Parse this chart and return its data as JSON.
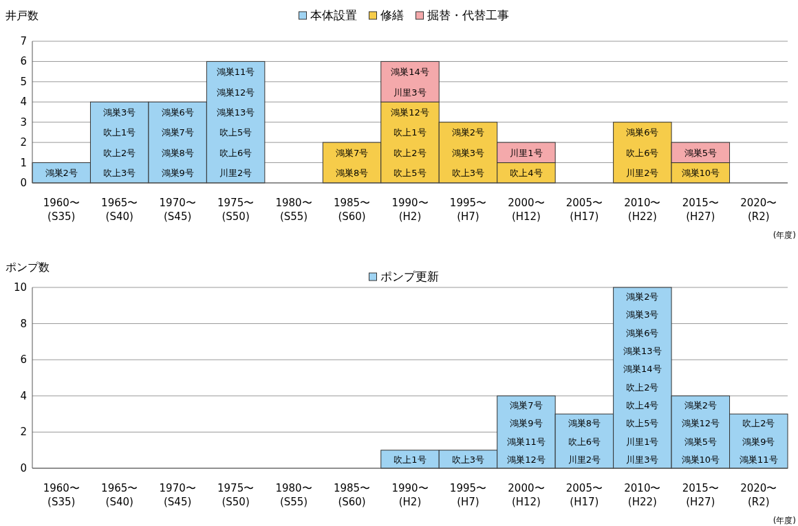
{
  "chart_data": [
    {
      "type": "bar",
      "stacked": true,
      "ylabel": "井戸数",
      "xlabel": "(年度)",
      "legend": "top",
      "grid": "y",
      "categories": [
        "1960〜\n(S35)",
        "1965〜\n(S40)",
        "1970〜\n(S45)",
        "1975〜\n(S50)",
        "1980〜\n(S55)",
        "1985〜\n(S60)",
        "1990〜\n(H2)",
        "1995〜\n(H7)",
        "2000〜\n(H12)",
        "2005〜\n(H17)",
        "2010〜\n(H22)",
        "2015〜\n(H27)",
        "2020〜\n(R2)"
      ],
      "ylim": [
        0,
        7
      ],
      "yticks": [
        0,
        1,
        2,
        3,
        4,
        5,
        6,
        7
      ],
      "series": [
        {
          "name": "本体設置",
          "color": "#9fd3f2",
          "values": [
            1,
            4,
            4,
            6,
            null,
            null,
            null,
            null,
            null,
            null,
            null,
            null,
            null
          ],
          "value_labels": [
            "鴻巣2号",
            "鴻巣3号吹上1号吹上2号吹上3号",
            "鴻巣6号鴻巣7号鴻巣8号鴻巣9号",
            "鴻巣11号鴻巣12号鴻巣13号吹上5号吹上6号川里2号",
            null,
            null,
            null,
            null,
            null,
            null,
            null,
            null,
            null
          ]
        },
        {
          "name": "修繕",
          "color": "#f6cc4a",
          "values": [
            null,
            null,
            null,
            null,
            null,
            2,
            4,
            3,
            1,
            null,
            3,
            1,
            null
          ],
          "value_labels": [
            null,
            null,
            null,
            null,
            null,
            "鴻巣7号鴻巣8号",
            "鴻巣12号吹上1号吹上2号吹上5号",
            "鴻巣2号鴻巣3号吹上3号",
            "吹上4号",
            null,
            "鴻巣6号吹上6号川里2号",
            "鴻巣10号",
            null
          ]
        },
        {
          "name": "掘替・代替工事",
          "color": "#f4a9ab",
          "values": [
            null,
            null,
            null,
            null,
            null,
            null,
            2,
            null,
            1,
            null,
            null,
            1,
            null
          ],
          "value_labels": [
            null,
            null,
            null,
            null,
            null,
            null,
            "鴻巣14号川里3号",
            null,
            "川里1号",
            null,
            null,
            "鴻巣5号",
            null
          ]
        }
      ]
    },
    {
      "type": "bar",
      "ylabel": "ポンプ数",
      "xlabel": "(年度)",
      "legend": "top",
      "grid": "y",
      "categories": [
        "1960〜\n(S35)",
        "1965〜\n(S40)",
        "1970〜\n(S45)",
        "1975〜\n(S50)",
        "1980〜\n(S55)",
        "1985〜\n(S60)",
        "1990〜\n(H2)",
        "1995〜\n(H7)",
        "2000〜\n(H12)",
        "2005〜\n(H17)",
        "2010〜\n(H22)",
        "2015〜\n(H27)",
        "2020〜\n(R2)"
      ],
      "ylim": [
        0,
        10
      ],
      "yticks": [
        0,
        2,
        4,
        6,
        8,
        10
      ],
      "series": [
        {
          "name": "ポンプ更新",
          "color": "#9fd3f2",
          "values": [
            null,
            null,
            null,
            null,
            null,
            null,
            1,
            1,
            4,
            3,
            10,
            4,
            3
          ],
          "value_labels": [
            null,
            null,
            null,
            null,
            null,
            null,
            "吹上1号",
            "吹上3号",
            "鴻巣7号鴻巣9号鴻巣11号鴻巣12号",
            "鴻巣8号吹上6号川里2号",
            "鴻巣2号鴻巣3号鴻巣6号鴻巣13号鴻巣14号吹上2号吹上4号吹上5号川里1号川里3号",
            "鴻巣2号鴻巣12号鴻巣5号鴻巣10号",
            "吹上2号鴻巣9号鴻巣11号"
          ]
        }
      ]
    }
  ]
}
